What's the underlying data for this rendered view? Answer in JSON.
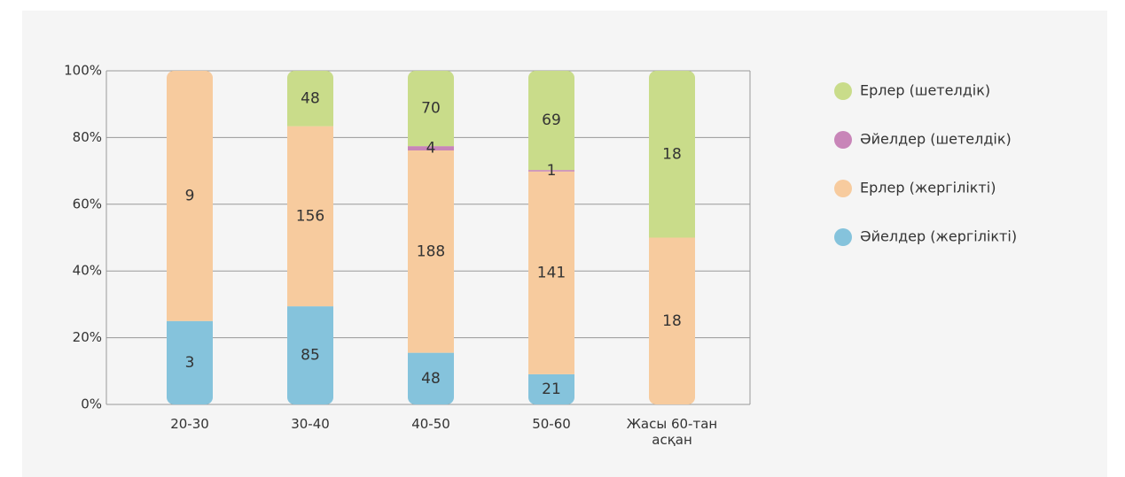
{
  "chart_data": {
    "type": "stacked_bar_percent",
    "categories": [
      "20-30",
      "30-40",
      "40-50",
      "50-60",
      "Жасы 60-тан асқан"
    ],
    "series": [
      {
        "name": "Әйелдер (жергілікті)",
        "color": "#85c3dc",
        "values": [
          3,
          85,
          48,
          21,
          null
        ]
      },
      {
        "name": "Ерлер (жергілікті)",
        "color": "#f7cb9e",
        "values": [
          9,
          156,
          188,
          141,
          18
        ]
      },
      {
        "name": "Әйелдер (шетелдік)",
        "color": "#c885b8",
        "values": [
          null,
          null,
          4,
          1,
          null
        ]
      },
      {
        "name": "Ерлер (шетелдік)",
        "color": "#c9dc8a",
        "values": [
          null,
          48,
          70,
          69,
          18
        ]
      }
    ],
    "ylim": [
      0,
      100
    ],
    "yticks": [
      {
        "value": 0,
        "label": "0%"
      },
      {
        "value": 20,
        "label": "20%"
      },
      {
        "value": 40,
        "label": "40%"
      },
      {
        "value": 60,
        "label": "60%"
      },
      {
        "value": 80,
        "label": "80%"
      },
      {
        "value": 100,
        "label": "100%"
      }
    ],
    "grid": true,
    "legend": "right"
  }
}
